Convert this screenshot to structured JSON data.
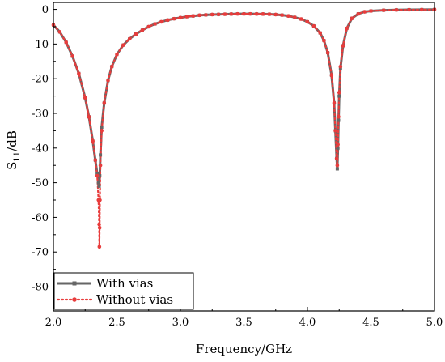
{
  "chart_data": {
    "type": "line",
    "xlabel": "Frequency/GHz",
    "ylabel_main": "S",
    "ylabel_sub": "11",
    "ylabel_unit": "/dB",
    "xlim": [
      2.0,
      5.0
    ],
    "ylim": [
      -87,
      2
    ],
    "xticks": [
      2.0,
      2.5,
      3.0,
      3.5,
      4.0,
      4.5,
      5.0
    ],
    "xtick_labels": [
      "2.0",
      "2.5",
      "3.0",
      "3.5",
      "4.0",
      "4.5",
      "5.0"
    ],
    "yticks": [
      0,
      -10,
      -20,
      -30,
      -40,
      -50,
      -60,
      -70,
      -80
    ],
    "ytick_labels": [
      "0",
      "-10",
      "-20",
      "-30",
      "-40",
      "-50",
      "-60",
      "-70",
      "-80"
    ],
    "grid": false,
    "legend_position": "bottom-left",
    "series": [
      {
        "name": "With vias",
        "color": "#666666",
        "style": "solid-square",
        "x": [
          2.0,
          2.05,
          2.1,
          2.15,
          2.2,
          2.25,
          2.28,
          2.31,
          2.33,
          2.345,
          2.355,
          2.36,
          2.365,
          2.37,
          2.38,
          2.4,
          2.43,
          2.46,
          2.5,
          2.55,
          2.6,
          2.65,
          2.7,
          2.75,
          2.8,
          2.85,
          2.9,
          2.95,
          3.0,
          3.05,
          3.1,
          3.15,
          3.2,
          3.25,
          3.3,
          3.35,
          3.4,
          3.45,
          3.5,
          3.55,
          3.6,
          3.65,
          3.7,
          3.75,
          3.8,
          3.85,
          3.9,
          3.95,
          4.0,
          4.05,
          4.1,
          4.13,
          4.16,
          4.19,
          4.21,
          4.22,
          4.23,
          4.235,
          4.24,
          4.245,
          4.25,
          4.26,
          4.28,
          4.31,
          4.35,
          4.4,
          4.45,
          4.5,
          4.6,
          4.7,
          4.8,
          4.9,
          5.0
        ],
        "y": [
          -4.5,
          -6.5,
          -9.5,
          -13.5,
          -18.5,
          -25.5,
          -31,
          -38,
          -43.5,
          -47.5,
          -50,
          -51,
          -48,
          -42,
          -34,
          -27,
          -20.5,
          -16.5,
          -13,
          -10.3,
          -8.5,
          -7.1,
          -6.0,
          -5.0,
          -4.2,
          -3.6,
          -3.1,
          -2.7,
          -2.4,
          -2.1,
          -1.9,
          -1.7,
          -1.6,
          -1.5,
          -1.45,
          -1.4,
          -1.35,
          -1.3,
          -1.3,
          -1.3,
          -1.32,
          -1.35,
          -1.4,
          -1.5,
          -1.65,
          -1.9,
          -2.3,
          -2.8,
          -3.6,
          -4.8,
          -6.8,
          -9.0,
          -12.5,
          -19,
          -27,
          -35,
          -43,
          -46,
          -40,
          -32,
          -25,
          -17,
          -10.5,
          -5.5,
          -2.6,
          -1.3,
          -0.7,
          -0.45,
          -0.25,
          -0.15,
          -0.1,
          -0.08,
          -0.05
        ]
      },
      {
        "name": "Without vias",
        "color": "#e83c3c",
        "style": "dotted-circle",
        "x": [
          2.0,
          2.05,
          2.1,
          2.15,
          2.2,
          2.25,
          2.28,
          2.31,
          2.33,
          2.345,
          2.355,
          2.36,
          2.362,
          2.364,
          2.366,
          2.37,
          2.38,
          2.4,
          2.43,
          2.46,
          2.5,
          2.55,
          2.6,
          2.65,
          2.7,
          2.75,
          2.8,
          2.85,
          2.9,
          2.95,
          3.0,
          3.05,
          3.1,
          3.15,
          3.2,
          3.25,
          3.3,
          3.35,
          3.4,
          3.45,
          3.5,
          3.55,
          3.6,
          3.65,
          3.7,
          3.75,
          3.8,
          3.85,
          3.9,
          3.95,
          4.0,
          4.05,
          4.1,
          4.13,
          4.16,
          4.19,
          4.21,
          4.22,
          4.23,
          4.235,
          4.24,
          4.245,
          4.25,
          4.26,
          4.28,
          4.31,
          4.35,
          4.4,
          4.45,
          4.5,
          4.6,
          4.7,
          4.8,
          4.9,
          5.0
        ],
        "y": [
          -4.5,
          -6.5,
          -9.5,
          -13.5,
          -18.5,
          -25.5,
          -31,
          -38,
          -43.5,
          -48,
          -55,
          -62,
          -68.5,
          -63,
          -55,
          -45,
          -35,
          -27,
          -20.5,
          -16.5,
          -13,
          -10.3,
          -8.5,
          -7.1,
          -6.0,
          -5.0,
          -4.2,
          -3.6,
          -3.1,
          -2.7,
          -2.4,
          -2.1,
          -1.9,
          -1.7,
          -1.6,
          -1.5,
          -1.45,
          -1.4,
          -1.35,
          -1.3,
          -1.3,
          -1.3,
          -1.32,
          -1.35,
          -1.4,
          -1.5,
          -1.65,
          -1.9,
          -2.3,
          -2.8,
          -3.6,
          -4.8,
          -6.8,
          -9.0,
          -12.5,
          -19,
          -27,
          -35,
          -43,
          -45,
          -39,
          -31,
          -24,
          -16.5,
          -10.5,
          -5.5,
          -2.6,
          -1.3,
          -0.7,
          -0.45,
          -0.25,
          -0.15,
          -0.1,
          -0.08,
          -0.05
        ]
      }
    ]
  }
}
